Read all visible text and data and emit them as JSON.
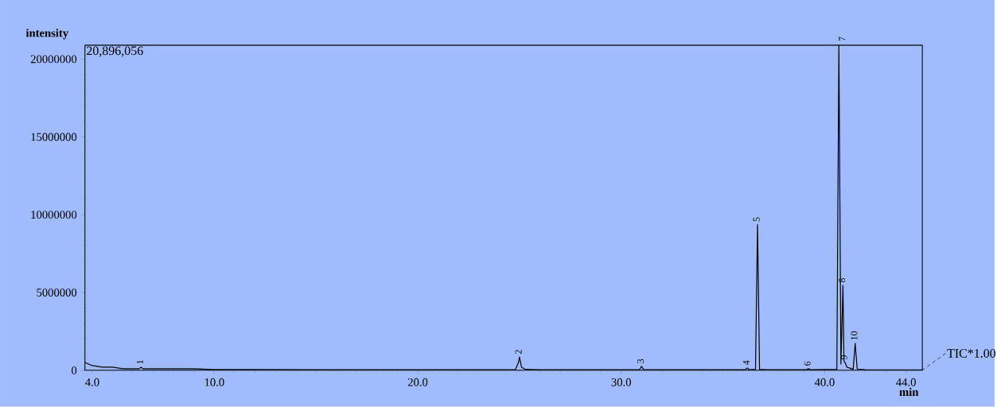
{
  "chart_data": {
    "type": "line",
    "xlabel": "min",
    "ylabel": "intensity",
    "xlim": [
      3.64,
      44.8
    ],
    "ylim": [
      0,
      20896056
    ],
    "xticks": [
      {
        "value": 4,
        "label": "4.0"
      },
      {
        "value": 10,
        "label": "10.0"
      },
      {
        "value": 20,
        "label": "20.0"
      },
      {
        "value": 30,
        "label": "30.0"
      },
      {
        "value": 40,
        "label": "40.0"
      },
      {
        "value": 44,
        "label": "44.0"
      }
    ],
    "yticks": [
      0,
      5000000,
      10000000,
      15000000,
      20000000
    ],
    "series": [
      {
        "color": "#000000",
        "x": [
          3.64,
          4.0,
          4.5,
          5.0,
          5.5,
          6.0,
          6.3,
          6.4,
          6.5,
          7.0,
          8.0,
          9.0,
          10.0,
          12.0,
          15.0,
          20.0,
          24.8,
          24.95,
          25.0,
          25.1,
          25.3,
          26.0,
          30.9,
          31.0,
          31.1,
          36.1,
          36.2,
          36.3,
          36.6,
          36.7,
          36.8,
          37.2,
          39.1,
          39.2,
          39.3,
          40.6,
          40.7,
          40.8,
          40.9,
          40.95,
          41.0,
          41.1,
          41.4,
          41.5,
          41.6,
          42.0,
          44.8
        ],
        "values": [
          500000,
          300000,
          200000,
          200000,
          100000,
          100000,
          100000,
          200000,
          100000,
          100000,
          100000,
          100000,
          50000,
          50000,
          40000,
          40000,
          40000,
          500000,
          850000,
          200000,
          60000,
          40000,
          40000,
          250000,
          40000,
          40000,
          150000,
          40000,
          60000,
          9360000,
          60000,
          40000,
          40000,
          100000,
          40000,
          60000,
          20896056,
          400000,
          5450000,
          600000,
          500000,
          200000,
          60000,
          1730000,
          80000,
          40000,
          30000
        ]
      }
    ],
    "annotations": [
      "20,896,056",
      {
        "text": "TIC*1.00",
        "x": 44.8,
        "y": 0
      },
      {
        "text": "1",
        "x": 6.4,
        "y": 200000
      },
      {
        "text": "2",
        "x": 25.0,
        "y": 850000
      },
      {
        "text": "3",
        "x": 31.0,
        "y": 250000
      },
      {
        "text": "4",
        "x": 36.2,
        "y": 150000
      },
      {
        "text": "5",
        "x": 36.7,
        "y": 9360000
      },
      {
        "text": "6",
        "x": 39.2,
        "y": 100000
      },
      {
        "text": "7",
        "x": 40.7,
        "y": 20896056
      },
      {
        "text": "8",
        "x": 40.9,
        "y": 5450000
      },
      {
        "text": "9",
        "x": 41.0,
        "y": 500000
      },
      {
        "text": "10",
        "x": 41.5,
        "y": 1730000
      }
    ]
  }
}
